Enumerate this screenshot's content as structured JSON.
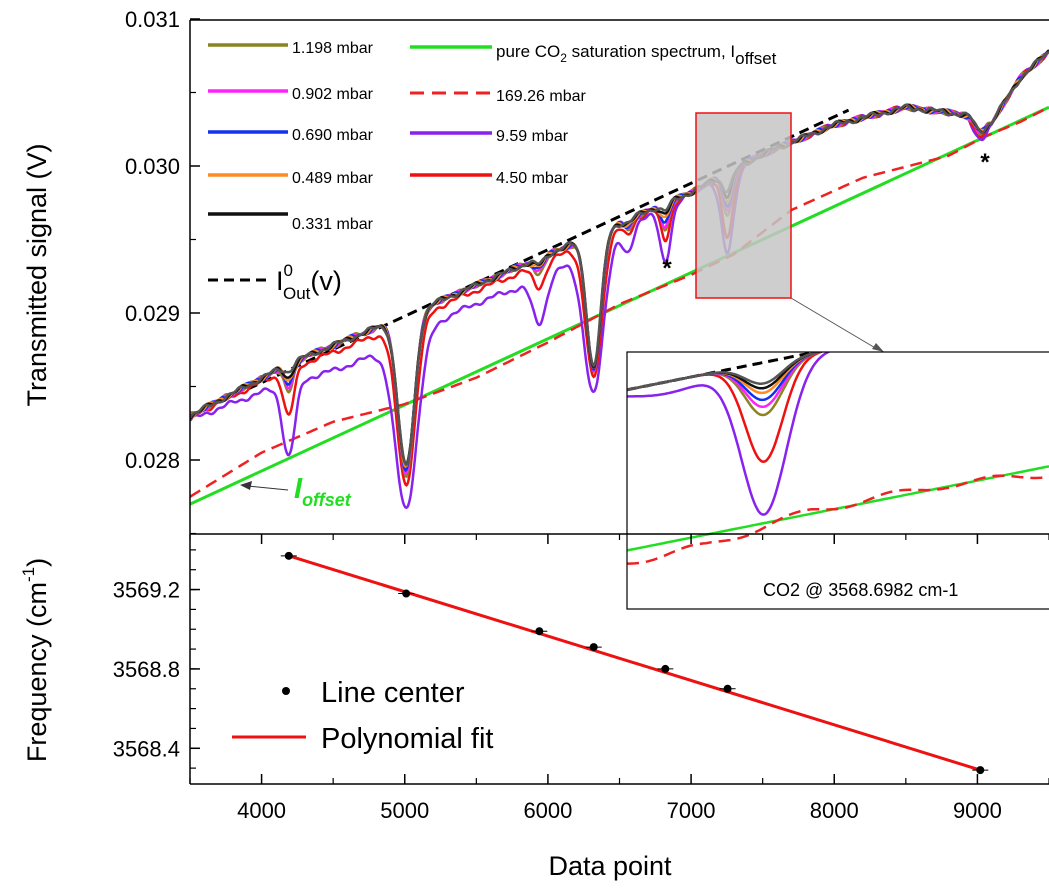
{
  "chart_data": [
    {
      "type": "line",
      "panel": "top",
      "xlim": [
        3500,
        9500
      ],
      "ylim": [
        0.0275,
        0.031
      ],
      "xlabel": "",
      "ylabel": "Transmitted signal (V)",
      "yticks": [
        "0.028",
        "0.029",
        "0.030",
        "0.031"
      ],
      "grid": false,
      "legend_position": "top-left",
      "legend": {
        "col1": [
          "1.198 mbar",
          "0.902 mbar",
          "0.690 mbar",
          "0.489 mbar",
          "0.331 mbar"
        ],
        "col2_pure": "pure CO",
        "col2_pure_sub": "2",
        "col2_pure_rest": " saturation spectrum, I",
        "col2_pure_offset": "offset",
        "col2": [
          "169.26 mbar",
          "9.59 mbar",
          "4.50 mbar"
        ],
        "iout_I": "I",
        "iout_sup": "0",
        "iout_sub": "Out",
        "iout_rest": "(v)"
      },
      "annotations": {
        "ioffset_I": "I",
        "ioffset_sub": "offset",
        "star": "*",
        "inset_label": "CO2 @ 3568.6982 cm-1"
      },
      "baseline": {
        "name": "I0Out(v)",
        "style": "dashed",
        "color": "#000000",
        "points": [
          [
            3500,
            0.0283
          ],
          [
            8100,
            0.03038
          ]
        ]
      },
      "offset_line": {
        "name": "pure CO2 saturation spectrum, Ioffset",
        "color": "#22dd22",
        "points": [
          [
            3500,
            0.0277
          ],
          [
            9500,
            0.0304
          ]
        ]
      },
      "series_169": {
        "name": "169.26 mbar",
        "color": "#ee2222",
        "style": "dashed",
        "points": [
          [
            3500,
            0.02775
          ],
          [
            4000,
            0.02805
          ],
          [
            4500,
            0.02826
          ],
          [
            5000,
            0.02838
          ],
          [
            5500,
            0.02856
          ],
          [
            6000,
            0.0288
          ],
          [
            6500,
            0.02906
          ],
          [
            7000,
            0.02926
          ],
          [
            7300,
            0.0294
          ],
          [
            7700,
            0.0297
          ],
          [
            8200,
            0.02992
          ],
          [
            8800,
            0.03007
          ],
          [
            9050,
            0.0302
          ],
          [
            9300,
            0.0303
          ],
          [
            9500,
            0.0304
          ]
        ]
      },
      "absorption_lines": [
        {
          "center": 4190,
          "width": 45,
          "depths": [
            0.0005,
            0.00032,
            0.0002,
            0.00017,
            0.00014,
            0.00011,
            9e-05,
            5e-05
          ]
        },
        {
          "center": 5010,
          "width": 80,
          "depths": [
            0.00115,
            0.0011,
            0.00108,
            0.00106,
            0.00105,
            0.00104,
            0.00103,
            0.00103
          ]
        },
        {
          "center": 5940,
          "width": 50,
          "depths": [
            0.0003,
            0.00015,
            0.0001,
            8e-05,
            7e-05,
            6e-05,
            5e-05,
            4e-05
          ]
        },
        {
          "center": 6320,
          "width": 70,
          "depths": [
            0.001,
            0.00095,
            0.00093,
            0.00092,
            0.00091,
            0.0009,
            0.0009,
            0.00089
          ]
        },
        {
          "center": 6560,
          "width": 40,
          "depths": [
            0.0002,
            0.0001,
            7e-05,
            5e-05,
            4e-05,
            3e-05,
            2e-05,
            2e-05
          ]
        },
        {
          "center": 6820,
          "width": 40,
          "depths": [
            0.0004,
            0.00025,
            0.00017,
            0.00015,
            0.00012,
            9e-05,
            7e-05,
            5e-05
          ]
        },
        {
          "center": 7255,
          "width": 45,
          "depths": [
            0.00055,
            0.00045,
            0.0003,
            0.00026,
            0.00022,
            0.00018,
            0.00015,
            0.00012
          ]
        },
        {
          "center": 9020,
          "width": 50,
          "depths": [
            0.00013,
            0.00011,
            0.0001,
            0.0001,
            9e-05,
            9e-05,
            9e-05,
            8e-05
          ]
        }
      ],
      "series": [
        {
          "name": "9.59 mbar",
          "color": "#8822ee"
        },
        {
          "name": "4.50 mbar",
          "color": "#ee1111"
        },
        {
          "name": "1.198 mbar",
          "color": "#8c8322"
        },
        {
          "name": "0.902 mbar",
          "color": "#ff22ff"
        },
        {
          "name": "0.690 mbar",
          "color": "#1133ee"
        },
        {
          "name": "0.489 mbar",
          "color": "#ff8c22"
        },
        {
          "name": "0.331 mbar",
          "color": "#111111"
        },
        {
          "name": "0.331 mbar (trace)",
          "color": "#555555"
        }
      ]
    },
    {
      "type": "scatter",
      "panel": "bottom",
      "xlim": [
        3500,
        9500
      ],
      "ylim": [
        3568.22,
        3569.48
      ],
      "xlabel": "Data point",
      "ylabel": "Frequency (cm",
      "ylabel_sup": "-1",
      "ylabel_close": ")",
      "xticks": [
        "4000",
        "5000",
        "6000",
        "7000",
        "8000",
        "9000"
      ],
      "yticks": [
        "3568.4",
        "3568.8",
        "3569.2"
      ],
      "grid": false,
      "legend_position": "bottom-left",
      "series": [
        {
          "name": "Line center",
          "color": "#000000",
          "x": [
            4190,
            5010,
            5940,
            6320,
            6820,
            7255,
            9020
          ],
          "y": [
            3569.37,
            3569.18,
            3568.99,
            3568.91,
            3568.8,
            3568.7,
            3568.29
          ]
        },
        {
          "name": "Polynomial fit",
          "color": "#ee1111",
          "x": [
            4190,
            9020
          ],
          "y": [
            3569.37,
            3568.29
          ]
        }
      ]
    }
  ]
}
